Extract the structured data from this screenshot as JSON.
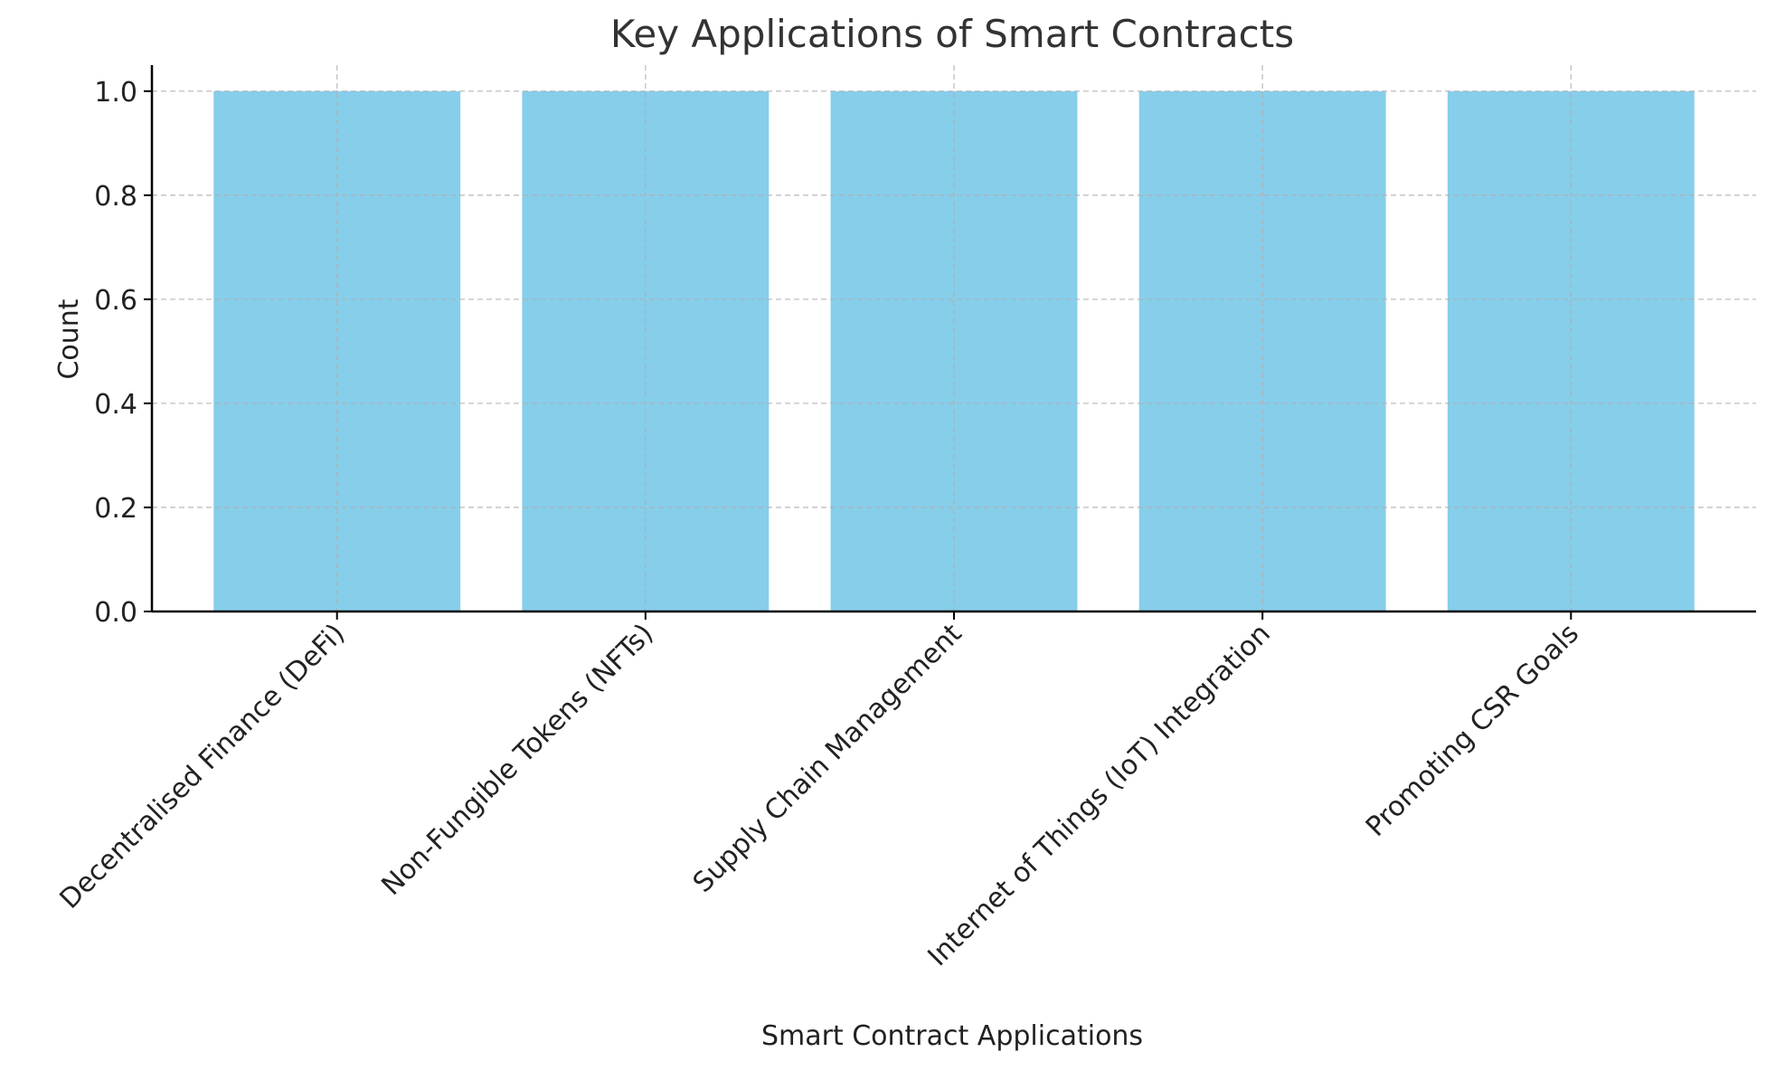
{
  "chart_data": {
    "type": "bar",
    "title": "Key Applications of Smart Contracts",
    "xlabel": "Smart Contract Applications",
    "ylabel": "Count",
    "categories": [
      "Decentralised Finance (DeFi)",
      "Non-Fungible Tokens (NFTs)",
      "Supply Chain Management",
      "Internet of Things (IoT) Integration",
      "Promoting CSR Goals"
    ],
    "values": [
      1,
      1,
      1,
      1,
      1
    ],
    "ylim": [
      0,
      1.05
    ],
    "yticks": [
      "0.0",
      "0.2",
      "0.4",
      "0.6",
      "0.8",
      "1.0"
    ],
    "grid": true,
    "bar_color": "#87CEEB",
    "legend": "none"
  }
}
